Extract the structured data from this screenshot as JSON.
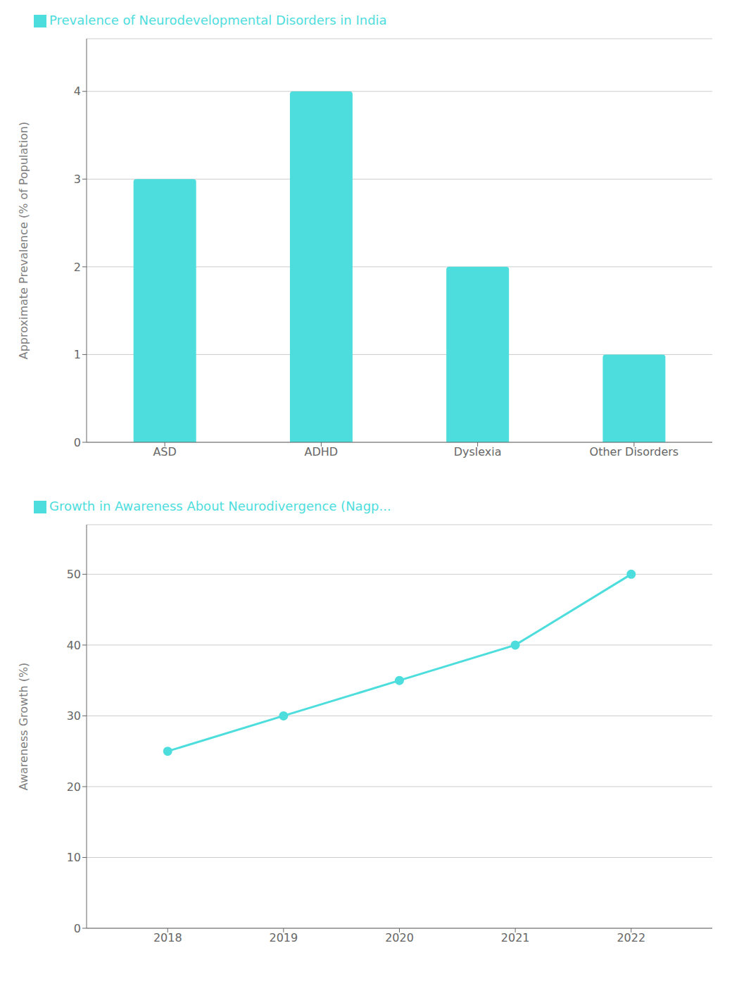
{
  "chart_data": [
    {
      "type": "bar",
      "categories": [
        "ASD",
        "ADHD",
        "Dyslexia",
        "Other Disorders"
      ],
      "series": [
        {
          "name": "Prevalence of Neurodevelopmental Disorders in India",
          "color": "#4DDDDD",
          "values": [
            3,
            4,
            2,
            1
          ]
        }
      ],
      "ylabel": "Approximate Prevalence (% of Population)",
      "ylim": [
        0,
        4.6
      ],
      "yticks": [
        0,
        1,
        2,
        3,
        4
      ],
      "grid": true,
      "legend": "upper left"
    },
    {
      "type": "line",
      "x": [
        2018,
        2019,
        2020,
        2021,
        2022
      ],
      "series": [
        {
          "name": "Growth in Awareness About Neurodivergence (Nagp...",
          "color": "#4DDDDD",
          "values": [
            25,
            30,
            35,
            40,
            50
          ],
          "marker": "circle"
        }
      ],
      "ylabel": "Awareness Growth (%)",
      "xlim": [
        2017.3,
        2022.7
      ],
      "xticks": [
        2018,
        2019,
        2020,
        2021,
        2022
      ],
      "ylim": [
        0,
        57
      ],
      "yticks": [
        0,
        10,
        20,
        30,
        40,
        50
      ],
      "grid": true,
      "legend": "upper left"
    }
  ]
}
